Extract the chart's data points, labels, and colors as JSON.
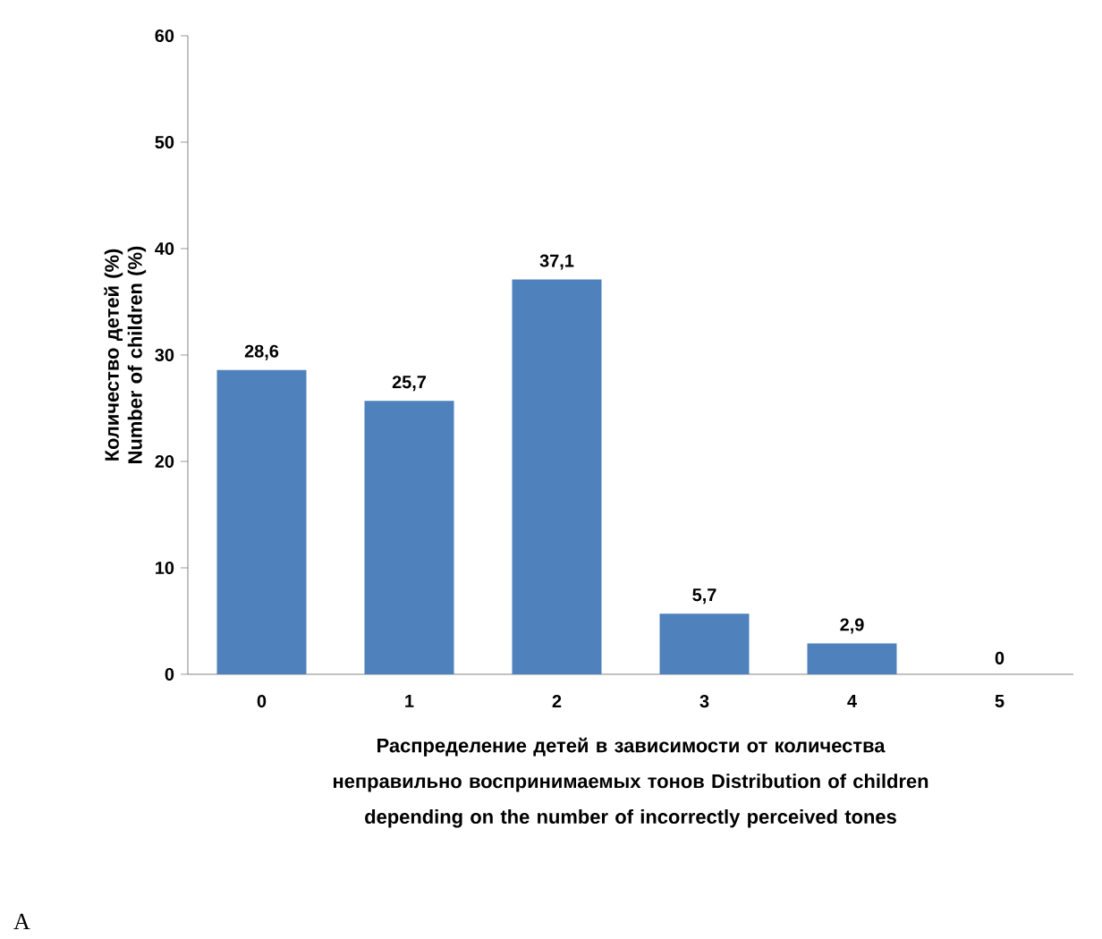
{
  "chart_data": {
    "type": "bar",
    "categories": [
      "0",
      "1",
      "2",
      "3",
      "4",
      "5"
    ],
    "values": [
      28.6,
      25.7,
      37.1,
      5.7,
      2.9,
      0
    ],
    "value_labels": [
      "28,6",
      "25,7",
      "37,1",
      "5,7",
      "2,9",
      "0"
    ],
    "color": "#4f81bd",
    "ylim": [
      0,
      60
    ],
    "yticks": [
      0,
      10,
      20,
      30,
      40,
      50,
      60
    ],
    "ylabel": "Количество детей (%) Number of children (%)",
    "xlabel": "Распределение детей в зависимости от количества неправильно воспринимаемых тонов Distribution of children depending on the number of incorrectly perceived tones",
    "annotations": [
      "A"
    ]
  }
}
